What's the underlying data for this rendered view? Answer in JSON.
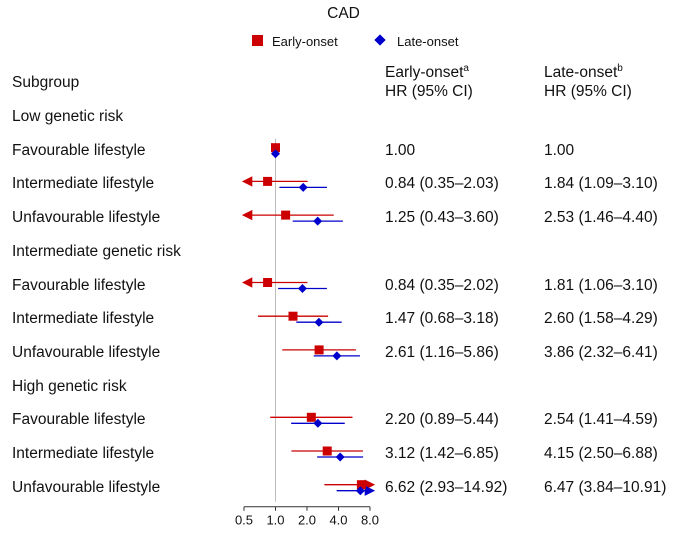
{
  "chart_data": {
    "type": "forest",
    "title": "CAD",
    "legend": [
      {
        "name": "Early-onset",
        "color": "#cc0000",
        "marker": "square"
      },
      {
        "name": "Late-onset",
        "color": "#0000cc",
        "marker": "diamond"
      }
    ],
    "headers": {
      "subgroup": "Subgroup",
      "early_line1": "Early-onset",
      "early_sup": "a",
      "early_line2": "HR (95% CI)",
      "late_line1": "Late-onset",
      "late_sup": "b",
      "late_line2": "HR (95% CI)"
    },
    "x_scale": "log2",
    "x_ticks": [
      0.5,
      1.0,
      2.0,
      4.0,
      8.0
    ],
    "x_tick_labels": [
      "0.5",
      "1.0",
      "2.0",
      "4.0",
      "8.0"
    ],
    "xlim": [
      0.5,
      8.0
    ],
    "reference_line": 1.0,
    "groups": [
      {
        "label": "Low genetic risk",
        "rows": [
          {
            "label": "Favourable lifestyle",
            "early": {
              "hr": 1.0,
              "lo": 1.0,
              "hi": 1.0
            },
            "early_text": "1.00",
            "late": {
              "hr": 1.0,
              "lo": 1.0,
              "hi": 1.0
            },
            "late_text": "1.00"
          },
          {
            "label": "Intermediate lifestyle",
            "early": {
              "hr": 0.84,
              "lo": 0.35,
              "hi": 2.03
            },
            "early_text": "0.84 (0.35–2.03)",
            "late": {
              "hr": 1.84,
              "lo": 1.09,
              "hi": 3.1
            },
            "late_text": "1.84 (1.09–3.10)"
          },
          {
            "label": "Unfavourable lifestyle",
            "early": {
              "hr": 1.25,
              "lo": 0.43,
              "hi": 3.6
            },
            "early_text": "1.25 (0.43–3.60)",
            "late": {
              "hr": 2.53,
              "lo": 1.46,
              "hi": 4.4
            },
            "late_text": "2.53 (1.46–4.40)"
          }
        ]
      },
      {
        "label": "Intermediate genetic risk",
        "rows": [
          {
            "label": "Favourable lifestyle",
            "early": {
              "hr": 0.84,
              "lo": 0.35,
              "hi": 2.02
            },
            "early_text": "0.84 (0.35–2.02)",
            "late": {
              "hr": 1.81,
              "lo": 1.06,
              "hi": 3.1
            },
            "late_text": "1.81 (1.06–3.10)"
          },
          {
            "label": "Intermediate lifestyle",
            "early": {
              "hr": 1.47,
              "lo": 0.68,
              "hi": 3.18
            },
            "early_text": "1.47 (0.68–3.18)",
            "late": {
              "hr": 2.6,
              "lo": 1.58,
              "hi": 4.29
            },
            "late_text": "2.60 (1.58–4.29)"
          },
          {
            "label": "Unfavourable lifestyle",
            "early": {
              "hr": 2.61,
              "lo": 1.16,
              "hi": 5.86
            },
            "early_text": "2.61 (1.16–5.86)",
            "late": {
              "hr": 3.86,
              "lo": 2.32,
              "hi": 6.41
            },
            "late_text": "3.86 (2.32–6.41)"
          }
        ]
      },
      {
        "label": "High genetic risk",
        "rows": [
          {
            "label": "Favourable lifestyle",
            "early": {
              "hr": 2.2,
              "lo": 0.89,
              "hi": 5.44
            },
            "early_text": "2.20 (0.89–5.44)",
            "late": {
              "hr": 2.54,
              "lo": 1.41,
              "hi": 4.59
            },
            "late_text": "2.54 (1.41–4.59)"
          },
          {
            "label": "Intermediate lifestyle",
            "early": {
              "hr": 3.12,
              "lo": 1.42,
              "hi": 6.85
            },
            "early_text": "3.12 (1.42–6.85)",
            "late": {
              "hr": 4.15,
              "lo": 2.5,
              "hi": 6.88
            },
            "late_text": "4.15 (2.50–6.88)"
          },
          {
            "label": "Unfavourable lifestyle",
            "early": {
              "hr": 6.62,
              "lo": 2.93,
              "hi": 14.92
            },
            "early_text": "6.62 (2.93–14.92)",
            "late": {
              "hr": 6.47,
              "lo": 3.84,
              "hi": 10.91
            },
            "late_text": "6.47 (3.84–10.91)"
          }
        ]
      }
    ]
  }
}
